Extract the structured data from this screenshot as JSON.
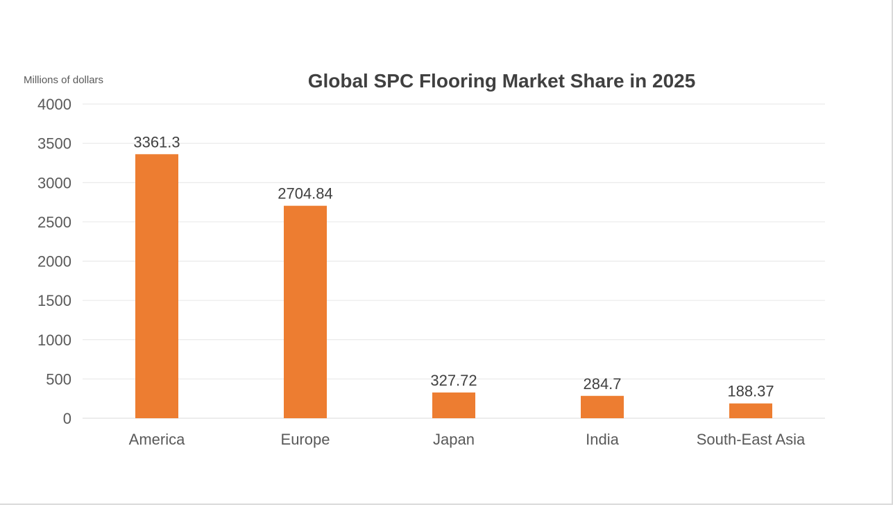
{
  "chart_data": {
    "type": "bar",
    "title": "Global SPC Flooring Market Share in 2025",
    "ylabel": "Millions of dollars",
    "xlabel": "",
    "categories": [
      "America",
      "Europe",
      "Japan",
      "India",
      "South-East Asia"
    ],
    "values": [
      3361.3,
      2704.84,
      327.72,
      284.7,
      188.37
    ],
    "value_labels": [
      "3361.3",
      "2704.84",
      "327.72",
      "284.7",
      "188.37"
    ],
    "ylim": [
      0,
      4000
    ],
    "yticks": [
      0,
      500,
      1000,
      1500,
      2000,
      2500,
      3000,
      3500,
      4000
    ],
    "ytick_labels": [
      "0",
      "500",
      "1000",
      "1500",
      "2000",
      "2500",
      "3000",
      "3500",
      "4000"
    ],
    "grid": true,
    "legend": "none",
    "colors": {
      "bar": "#ED7D31",
      "gridline": "#e6e6e6",
      "text": "#595959",
      "title": "#404040"
    }
  }
}
